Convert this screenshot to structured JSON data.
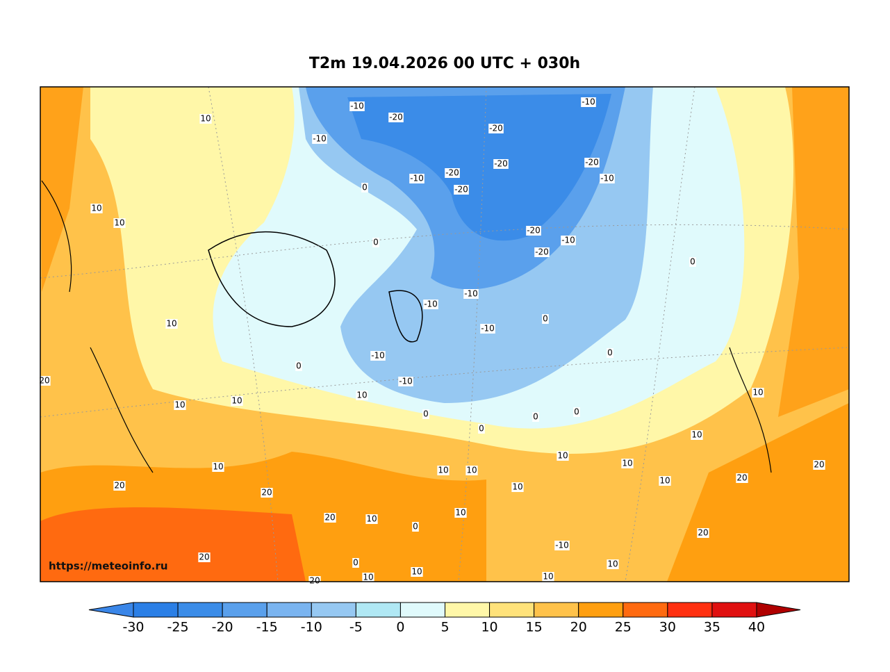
{
  "title": "T2m 19.04.2026 00 UTC + 030h",
  "watermark": "https://meteoinfo.ru",
  "contour_labels": [
    "10",
    "-10",
    "-20",
    "-20",
    "-10",
    "-10",
    "-20",
    "-20",
    "-20",
    "-10",
    "-20",
    "-10",
    "0",
    "10",
    "10",
    "0",
    "-20",
    "-10",
    "-20",
    "0",
    "-10",
    "-10",
    "10",
    "0",
    "-10",
    "-10",
    "0",
    "0",
    "-10",
    "20",
    "10",
    "10",
    "10",
    "10",
    "0",
    "0",
    "0",
    "0",
    "10",
    "10",
    "10",
    "10",
    "20",
    "10",
    "10",
    "10",
    "20",
    "20",
    "10",
    "20",
    "20",
    "10",
    "10",
    "0",
    "20",
    "-10",
    "20",
    "0",
    "10",
    "10",
    "10",
    "10",
    "20"
  ],
  "colorbar": {
    "ticks": [
      -30,
      -25,
      -20,
      -15,
      -10,
      -5,
      0,
      5,
      10,
      15,
      20,
      25,
      30,
      35,
      40
    ],
    "colors": [
      "#3a86e8",
      "#2b7fe6",
      "#3b8ce8",
      "#5aa0ec",
      "#7ab4f0",
      "#96c8f2",
      "#b0e8f4",
      "#e0fafc",
      "#fff7a8",
      "#ffe27a",
      "#ffc24a",
      "#ff9f10",
      "#ff6a10",
      "#ff3010",
      "#e01010",
      "#b00000"
    ]
  }
}
